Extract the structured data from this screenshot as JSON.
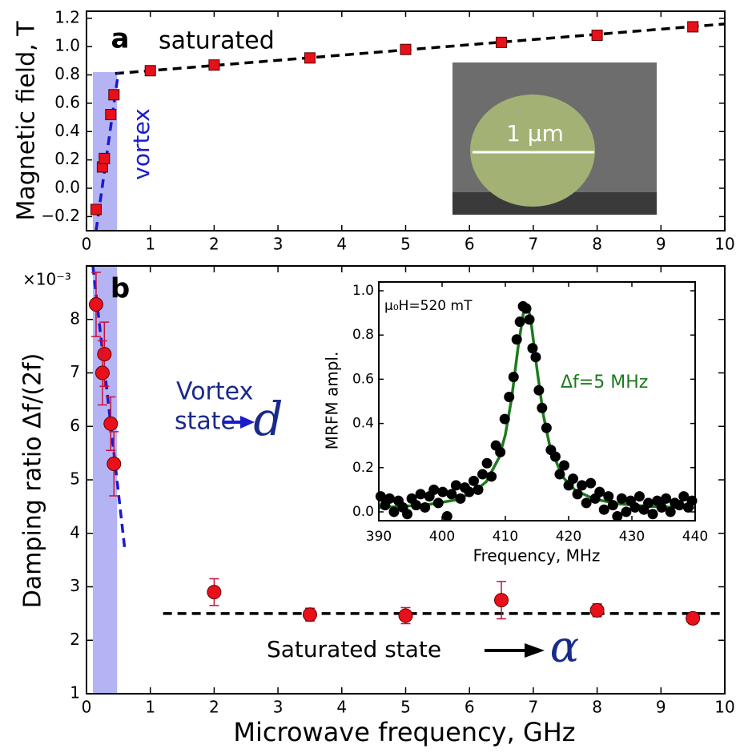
{
  "chart_data": [
    {
      "type": "scatter",
      "ylabel": "Magnetic field, T",
      "panel_label": "a",
      "annotations": [
        "saturated",
        "vortex"
      ],
      "image_scale_label": "1 µm",
      "x": [
        0.15,
        0.25,
        0.28,
        0.38,
        0.43,
        1,
        2,
        3.5,
        5,
        6.5,
        8,
        9.5
      ],
      "values": [
        -0.15,
        0.15,
        0.21,
        0.52,
        0.66,
        0.83,
        0.87,
        0.92,
        0.98,
        1.03,
        1.08,
        1.14
      ],
      "color": "#e8101a",
      "marker": "square",
      "fits": [
        {
          "x": [
            0.45,
            10
          ],
          "values": [
            0.81,
            1.16
          ],
          "color": "#000000",
          "dash": true
        },
        {
          "x": [
            0.15,
            0.5
          ],
          "values": [
            -0.3,
            0.82
          ],
          "color": "#1a1ad0",
          "dash": true
        }
      ],
      "band": {
        "x": [
          0.1,
          0.48
        ],
        "values": [
          -0.3,
          0.82
        ],
        "color": "#b4b4f4"
      },
      "xlim": [
        0,
        10
      ],
      "xticks": [
        0,
        1,
        2,
        3,
        4,
        5,
        6,
        7,
        8,
        9,
        10
      ],
      "ylim": [
        -0.3,
        1.25
      ],
      "yticks": [
        {
          "value": -0.2,
          "label": "−0.2"
        },
        {
          "value": 0,
          "label": "0.0"
        },
        0.2,
        0.4,
        0.6,
        0.8,
        {
          "value": 1,
          "label": "1.0"
        },
        1.2
      ]
    },
    {
      "type": "scatter",
      "xlabel": "Microwave frequency, GHz",
      "ylabel": "Damping ratio  Δf/(2f)",
      "y_scale_label": "×10⁻³",
      "panel_label": "b",
      "annotations": [
        "Vortex",
        "state",
        "d",
        "Saturated state",
        "α"
      ],
      "x": [
        0.15,
        0.28,
        0.25,
        0.38,
        0.43,
        2,
        3.5,
        5,
        6.5,
        8,
        9.5
      ],
      "values": [
        8.28,
        7.35,
        7.0,
        6.05,
        5.3,
        2.9,
        2.48,
        2.46,
        2.75,
        2.56,
        2.41
      ],
      "errors": [
        0.6,
        0.6,
        0.6,
        0.5,
        0.6,
        0.25,
        0.12,
        0.15,
        0.35,
        0.12,
        0.1
      ],
      "color": "#e8101a",
      "error_color": "#c8103a",
      "marker": "circle",
      "fits": [
        {
          "x": [
            1.2,
            10
          ],
          "values": [
            2.5,
            2.5
          ],
          "color": "#000000",
          "dash": true
        },
        {
          "x": [
            0.1,
            0.6
          ],
          "values": [
            9.0,
            3.7
          ],
          "color": "#1a1ad0",
          "dash": true
        }
      ],
      "band": {
        "x": [
          0.1,
          0.48
        ],
        "values": [
          1,
          9
        ],
        "color": "#b4b4f4"
      },
      "xlim": [
        0,
        10
      ],
      "xticks": [
        0,
        1,
        2,
        3,
        4,
        5,
        6,
        7,
        8,
        9,
        10
      ],
      "ylim": [
        1,
        9
      ],
      "yticks": [
        1,
        2,
        3,
        4,
        5,
        6,
        7,
        8
      ]
    },
    {
      "type": "scatter",
      "xlabel": "Frequency, MHz",
      "ylabel": "MRFM ampl.",
      "annotations": [
        "μ₀H=520 mT",
        "Δf=5 MHz"
      ],
      "x": [
        390.3,
        391,
        391.7,
        392.4,
        393.1,
        393.8,
        394.5,
        395.2,
        395.9,
        396.6,
        397.3,
        398,
        398.7,
        399.4,
        400.1,
        400.8,
        401.5,
        402.2,
        402.9,
        403.6,
        404.3,
        405,
        405.7,
        406.4,
        407.1,
        407.8,
        408.5,
        409.2,
        409.9,
        410.6,
        411.3,
        411.8,
        412.3,
        412.8,
        413.3,
        413.8,
        414.3,
        414.8,
        415.3,
        415.8,
        416.5,
        417.2,
        417.9,
        418.6,
        419.3,
        420,
        420.7,
        421.4,
        422.1,
        422.8,
        423.5,
        424.2,
        424.9,
        425.6,
        426.3,
        427,
        427.7,
        428.4,
        429.1,
        429.8,
        430.5,
        431.2,
        431.9,
        432.6,
        433.3,
        434,
        434.7,
        435.4,
        436.1,
        436.8,
        437.5,
        438.2,
        438.9,
        439.5
      ],
      "values": [
        0.07,
        0.03,
        0.06,
        0.0,
        0.05,
        0.02,
        -0.01,
        0.06,
        0.03,
        0.08,
        0.02,
        0.07,
        0.1,
        0.04,
        0.09,
        -0.02,
        0.08,
        0.12,
        0.06,
        0.11,
        0.09,
        0.14,
        0.1,
        0.17,
        0.22,
        0.16,
        0.3,
        0.27,
        0.42,
        0.52,
        0.61,
        0.78,
        0.86,
        0.93,
        0.92,
        0.87,
        0.74,
        0.7,
        0.55,
        0.47,
        0.38,
        0.28,
        0.25,
        0.17,
        0.21,
        0.12,
        0.15,
        0.08,
        0.12,
        0.04,
        0.13,
        0.06,
        0.09,
        0.01,
        0.07,
        0.03,
        -0.02,
        0.06,
        0.0,
        0.05,
        0.02,
        0.07,
        0.01,
        0.04,
        -0.01,
        0.05,
        0.02,
        0.06,
        0.0,
        0.04,
        0.03,
        0.07,
        0.02,
        0.05
      ],
      "color": "#000000",
      "marker": "circle",
      "fits": [
        {
          "x": [
            390,
            394,
            398,
            402,
            405,
            407,
            409,
            410,
            411,
            412,
            413,
            413.5,
            414,
            415,
            416,
            417,
            419,
            421,
            424,
            428,
            432,
            436,
            440
          ],
          "values": [
            0.02,
            0.025,
            0.034,
            0.053,
            0.088,
            0.137,
            0.245,
            0.349,
            0.514,
            0.742,
            0.927,
            0.934,
            0.873,
            0.646,
            0.439,
            0.301,
            0.16,
            0.099,
            0.058,
            0.036,
            0.026,
            0.021,
            0.018
          ],
          "color": "#1e7a1e",
          "dash": false
        }
      ],
      "xlim": [
        390,
        440
      ],
      "xticks": [
        390,
        400,
        410,
        420,
        430,
        440
      ],
      "ylim": [
        -0.04,
        1.04
      ],
      "yticks": [
        {
          "value": 0,
          "label": "0.0"
        },
        0.2,
        0.4,
        0.6,
        0.8,
        {
          "value": 1,
          "label": "1.0"
        }
      ]
    }
  ]
}
